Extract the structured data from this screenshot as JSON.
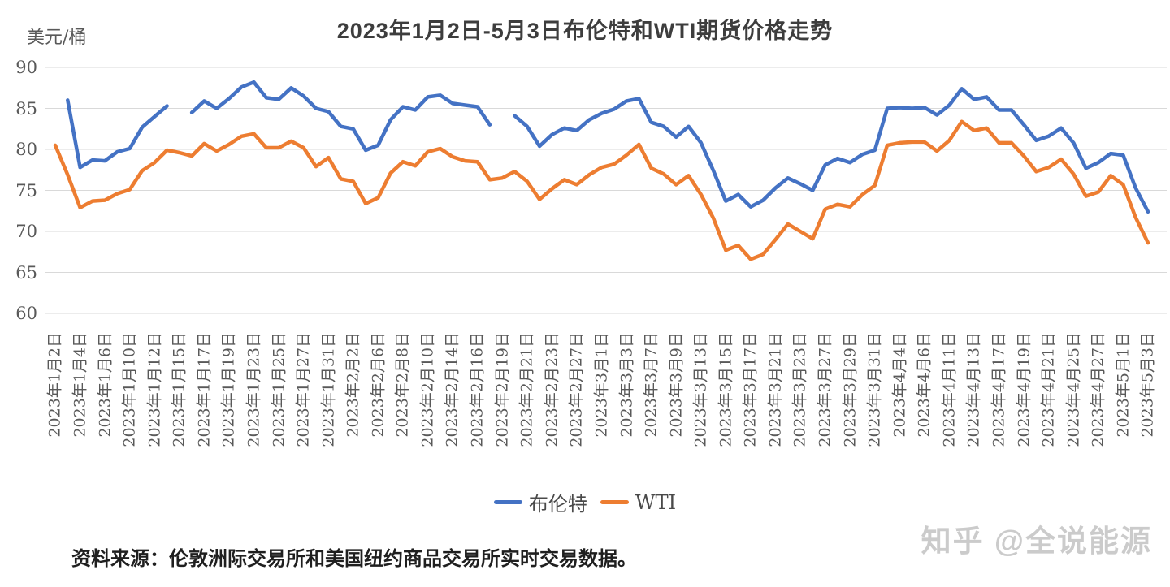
{
  "chart_data": {
    "type": "line",
    "title": "2023年1月2日-5月3日布伦特和WTI期货价格走势",
    "unit_label": "美元/桶",
    "ylabel": "美元/桶",
    "ylim": [
      60,
      90
    ],
    "yticks": [
      90,
      85,
      80,
      75,
      70,
      65,
      60
    ],
    "grid": true,
    "legend_position": "bottom-center",
    "x_labels": [
      "2023年1月2日",
      "2023年1月4日",
      "2023年1月6日",
      "2023年1月10日",
      "2023年1月12日",
      "2023年1月15日",
      "2023年1月17日",
      "2023年1月19日",
      "2023年1月23日",
      "2023年1月25日",
      "2023年1月27日",
      "2023年1月31日",
      "2023年2月2日",
      "2023年2月6日",
      "2023年2月8日",
      "2023年2月10日",
      "2023年2月14日",
      "2023年2月16日",
      "2023年2月19日",
      "2023年2月21日",
      "2023年2月23日",
      "2023年2月27日",
      "2023年3月1日",
      "2023年3月3日",
      "2023年3月7日",
      "2023年3月9日",
      "2023年3月13日",
      "2023年3月15日",
      "2023年3月17日",
      "2023年3月21日",
      "2023年3月23日",
      "2023年3月27日",
      "2023年3月29日",
      "2023年3月31日",
      "2023年4月4日",
      "2023年4月6日",
      "2023年4月11日",
      "2023年4月13日",
      "2023年4月17日",
      "2023年4月19日",
      "2023年4月21日",
      "2023年4月25日",
      "2023年4月27日",
      "2023年5月1日",
      "2023年5月3日"
    ],
    "x_labels_note": "labels sit on every second data slot; one unlabeled trading-day point lies between each pair of labels",
    "series": [
      {
        "name": "布伦特",
        "color": "#4472C4",
        "values": [
          null,
          86.0,
          77.8,
          78.7,
          78.6,
          79.7,
          80.1,
          82.7,
          84.0,
          85.3,
          null,
          84.5,
          85.9,
          85.0,
          86.2,
          87.6,
          88.2,
          86.3,
          86.1,
          87.5,
          86.5,
          85.0,
          84.6,
          82.8,
          82.5,
          79.9,
          80.5,
          83.6,
          85.2,
          84.8,
          86.4,
          86.6,
          85.6,
          85.4,
          85.2,
          83.0,
          null,
          84.1,
          82.8,
          80.4,
          81.8,
          82.6,
          82.3,
          83.6,
          84.4,
          84.9,
          85.9,
          86.2,
          83.3,
          82.8,
          81.5,
          82.8,
          80.8,
          77.4,
          73.7,
          74.5,
          73.0,
          73.8,
          75.3,
          76.5,
          75.8,
          75.0,
          78.1,
          78.9,
          78.4,
          79.4,
          79.9,
          85.0,
          85.1,
          85.0,
          85.1,
          84.2,
          85.4,
          87.4,
          86.1,
          86.4,
          84.8,
          84.8,
          83.0,
          81.1,
          81.6,
          82.6,
          80.8,
          77.7,
          78.4,
          79.5,
          79.3,
          75.3,
          72.4
        ]
      },
      {
        "name": "WTI",
        "color": "#ED7D31",
        "values": [
          80.5,
          76.9,
          72.9,
          73.7,
          73.8,
          74.6,
          75.1,
          77.4,
          78.4,
          79.9,
          79.6,
          79.2,
          80.7,
          79.8,
          80.6,
          81.6,
          81.9,
          80.2,
          80.2,
          81.0,
          80.2,
          77.9,
          79.0,
          76.4,
          76.1,
          73.4,
          74.1,
          77.1,
          78.5,
          78.0,
          79.7,
          80.1,
          79.1,
          78.6,
          78.5,
          76.3,
          76.5,
          77.3,
          76.1,
          73.9,
          75.2,
          76.3,
          75.7,
          76.9,
          77.8,
          78.2,
          79.3,
          80.6,
          77.7,
          77.0,
          75.7,
          76.8,
          74.5,
          71.6,
          67.7,
          68.3,
          66.6,
          67.2,
          69.0,
          70.9,
          70.0,
          69.1,
          72.7,
          73.3,
          73.0,
          74.5,
          75.6,
          80.5,
          80.8,
          80.9,
          80.9,
          79.8,
          81.1,
          83.4,
          82.3,
          82.6,
          80.8,
          80.8,
          79.2,
          77.3,
          77.8,
          78.8,
          77.0,
          74.3,
          74.8,
          76.8,
          75.7,
          71.7,
          68.6
        ]
      }
    ],
    "gridline_color": "#D9D9D9"
  },
  "footer": {
    "source_note": "资料来源：伦敦洲际交易所和美国纽约商品交易所实时交易数据。"
  },
  "watermark": {
    "text": "知乎 @全说能源"
  }
}
